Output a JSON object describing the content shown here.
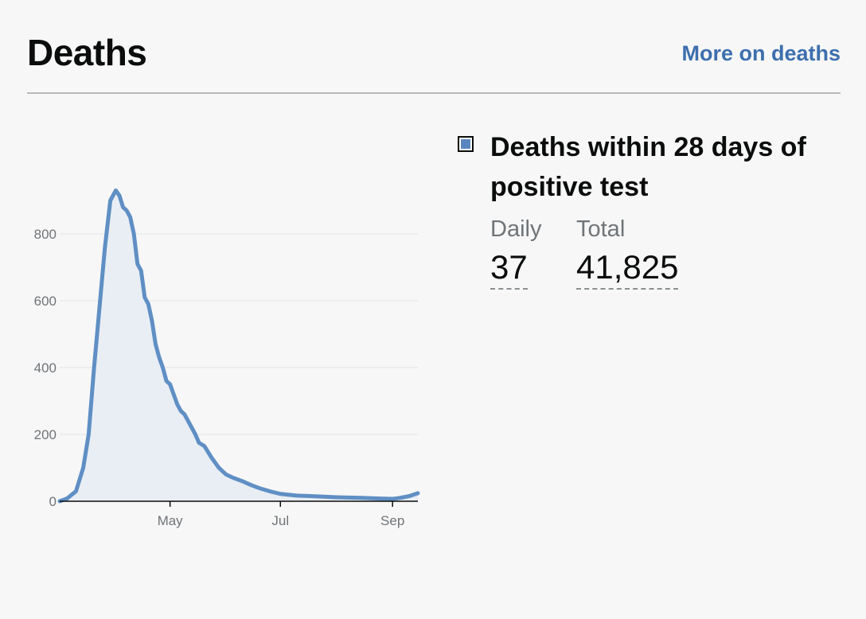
{
  "header": {
    "title": "Deaths",
    "more_link": "More on deaths"
  },
  "legend": {
    "label": "Deaths within 28 days of positive test",
    "color": "#5a86c0"
  },
  "metrics": {
    "daily_label": "Daily",
    "daily_value": "37",
    "total_label": "Total",
    "total_value": "41,825"
  },
  "colors": {
    "line": "#5f8fc4",
    "fill": "#e9eef4",
    "grid": "#e2e4e6",
    "link": "#3d6fae"
  },
  "chart_data": {
    "type": "area",
    "title": "",
    "xlabel": "",
    "ylabel": "",
    "ylim": [
      0,
      1000
    ],
    "yticks": [
      0,
      200,
      400,
      600,
      800
    ],
    "xticks": [
      {
        "label": "May",
        "value": "2020-05-01"
      },
      {
        "label": "Jul",
        "value": "2020-07-01"
      },
      {
        "label": "Sep",
        "value": "2020-09-01"
      }
    ],
    "grid": true,
    "series": [
      {
        "values": [
          [
            "2020-03-01",
            0
          ],
          [
            "2020-03-05",
            8
          ],
          [
            "2020-03-10",
            30
          ],
          [
            "2020-03-14",
            100
          ],
          [
            "2020-03-17",
            200
          ],
          [
            "2020-03-20",
            400
          ],
          [
            "2020-03-23",
            580
          ],
          [
            "2020-03-26",
            760
          ],
          [
            "2020-03-29",
            900
          ],
          [
            "2020-04-01",
            930
          ],
          [
            "2020-04-03",
            915
          ],
          [
            "2020-04-05",
            880
          ],
          [
            "2020-04-07",
            870
          ],
          [
            "2020-04-09",
            850
          ],
          [
            "2020-04-11",
            800
          ],
          [
            "2020-04-13",
            710
          ],
          [
            "2020-04-15",
            690
          ],
          [
            "2020-04-17",
            610
          ],
          [
            "2020-04-19",
            590
          ],
          [
            "2020-04-21",
            540
          ],
          [
            "2020-04-23",
            470
          ],
          [
            "2020-04-25",
            430
          ],
          [
            "2020-04-27",
            400
          ],
          [
            "2020-04-29",
            360
          ],
          [
            "2020-05-01",
            350
          ],
          [
            "2020-05-03",
            320
          ],
          [
            "2020-05-05",
            290
          ],
          [
            "2020-05-07",
            270
          ],
          [
            "2020-05-09",
            260
          ],
          [
            "2020-05-11",
            240
          ],
          [
            "2020-05-13",
            220
          ],
          [
            "2020-05-15",
            200
          ],
          [
            "2020-05-17",
            175
          ],
          [
            "2020-05-20",
            165
          ],
          [
            "2020-05-24",
            130
          ],
          [
            "2020-05-28",
            100
          ],
          [
            "2020-06-01",
            80
          ],
          [
            "2020-06-05",
            70
          ],
          [
            "2020-06-10",
            60
          ],
          [
            "2020-06-15",
            48
          ],
          [
            "2020-06-20",
            38
          ],
          [
            "2020-06-25",
            30
          ],
          [
            "2020-07-01",
            22
          ],
          [
            "2020-07-10",
            17
          ],
          [
            "2020-07-20",
            15
          ],
          [
            "2020-08-01",
            12
          ],
          [
            "2020-08-15",
            10
          ],
          [
            "2020-08-25",
            8
          ],
          [
            "2020-09-01",
            7
          ],
          [
            "2020-09-05",
            10
          ],
          [
            "2020-09-10",
            15
          ],
          [
            "2020-09-15",
            24
          ]
        ]
      }
    ]
  }
}
